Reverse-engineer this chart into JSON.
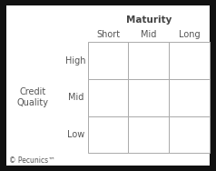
{
  "title": "Maturity",
  "col_labels": [
    "Short",
    "Mid",
    "Long"
  ],
  "row_labels": [
    "High",
    "Mid",
    "Low"
  ],
  "credit_quality_label": "Credit\nQuality",
  "footer": "© Pecunics™",
  "outer_bg_color": "#111111",
  "inner_bg_color": "#ffffff",
  "grid_color": "#aaaaaa",
  "text_color": "#555555",
  "title_color": "#444444",
  "title_fontsize": 7.5,
  "col_label_fontsize": 7,
  "row_label_fontsize": 7,
  "credit_label_fontsize": 7,
  "footer_fontsize": 5.5,
  "fig_width": 2.38,
  "fig_height": 1.88,
  "dpi": 100,
  "n_cols": 3,
  "n_rows": 3
}
